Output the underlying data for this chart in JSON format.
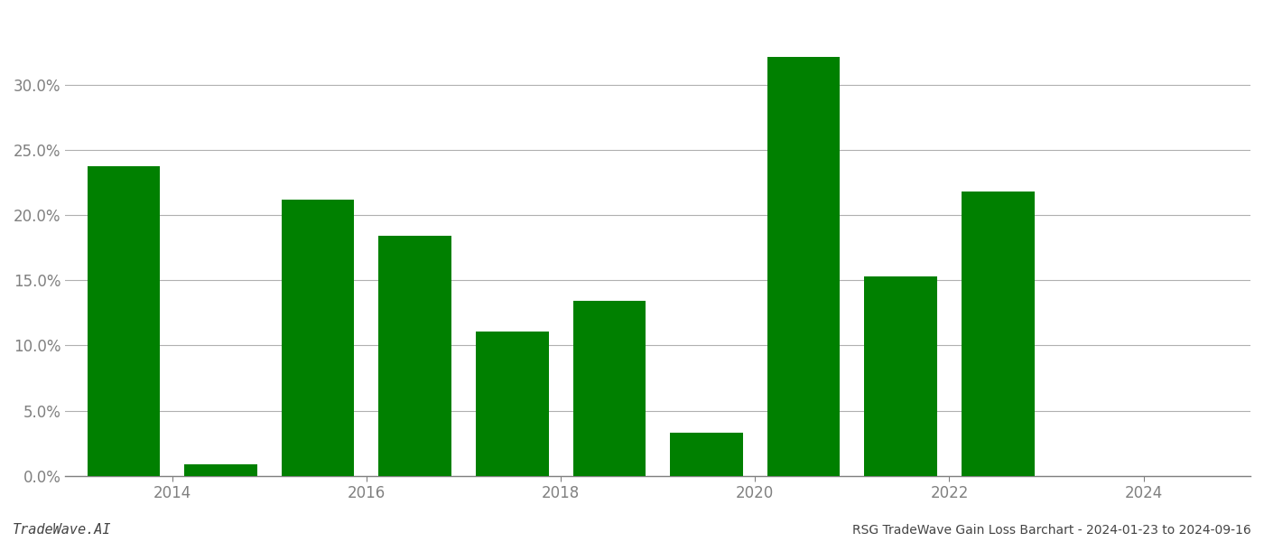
{
  "years": [
    2013.5,
    2014.5,
    2015.5,
    2016.5,
    2017.5,
    2018.5,
    2019.5,
    2020.5,
    2021.5,
    2022.5,
    2023.5
  ],
  "values": [
    0.238,
    0.009,
    0.212,
    0.184,
    0.111,
    0.134,
    0.033,
    0.322,
    0.153,
    0.218,
    0.0
  ],
  "bar_color": "#008000",
  "background_color": "#ffffff",
  "grid_color": "#b0b0b0",
  "axis_label_color": "#808080",
  "title_text": "RSG TradeWave Gain Loss Barchart - 2024-01-23 to 2024-09-16",
  "watermark_text": "TradeWave.AI",
  "ylim": [
    0,
    0.355
  ],
  "yticks": [
    0.0,
    0.05,
    0.1,
    0.15,
    0.2,
    0.25,
    0.3
  ],
  "xtick_positions": [
    2014,
    2016,
    2018,
    2020,
    2022,
    2024
  ],
  "xtick_labels": [
    "2014",
    "2016",
    "2018",
    "2020",
    "2022",
    "2024"
  ],
  "bar_width": 0.75,
  "xlim": [
    2012.9,
    2025.1
  ],
  "figsize": [
    14.0,
    6.0
  ],
  "dpi": 100
}
